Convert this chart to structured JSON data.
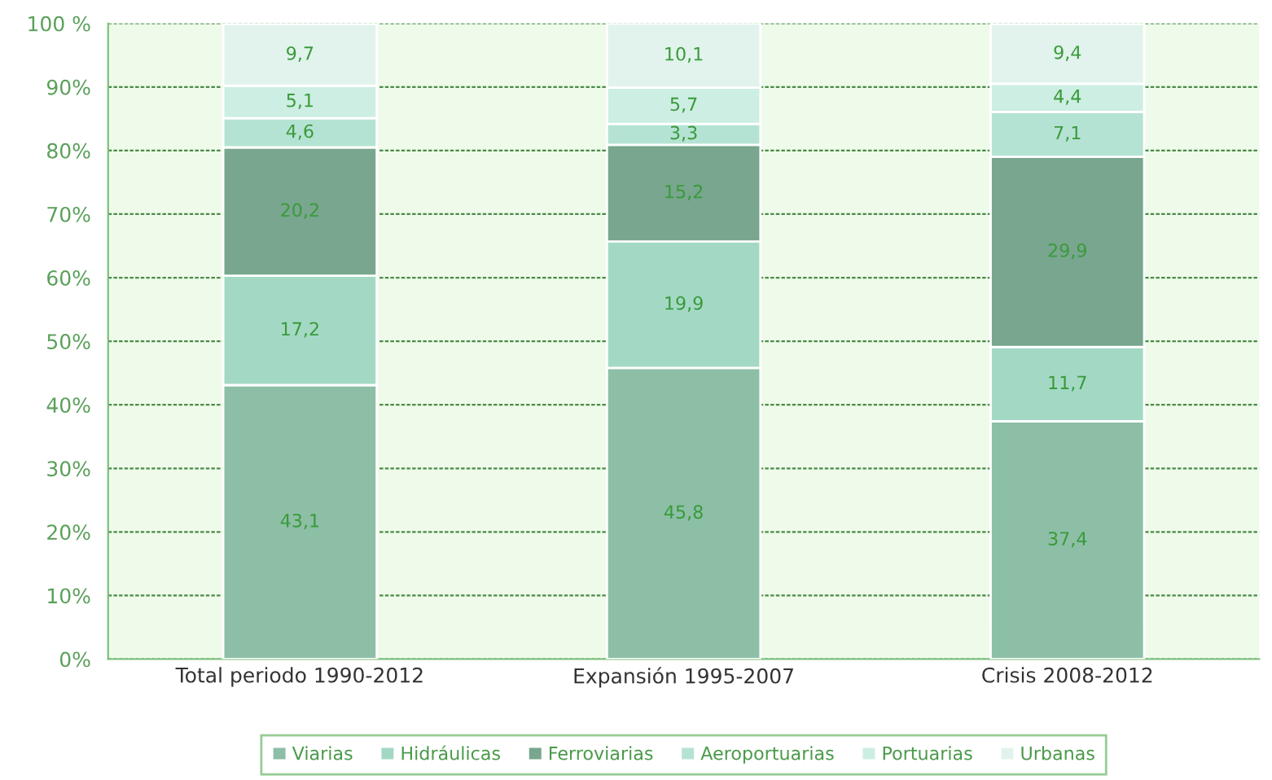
{
  "chart_data": {
    "type": "bar",
    "stacked": true,
    "categories": [
      "Total periodo 1990-2012",
      "Expansión 1995-2007",
      "Crisis 2008-2012"
    ],
    "series": [
      {
        "name": "Viarias",
        "color": "#8cbfa6",
        "values": [
          43.1,
          45.8,
          37.4
        ],
        "value_labels": [
          "43,1",
          "45,8",
          "37,4"
        ]
      },
      {
        "name": "Hidráulicas",
        "color": "#a3d9c4",
        "values": [
          17.2,
          19.9,
          11.7
        ],
        "value_labels": [
          "17,2",
          "19,9",
          "11,7"
        ]
      },
      {
        "name": "Ferroviarias",
        "color": "#78a68e",
        "values": [
          20.2,
          15.2,
          29.9
        ],
        "value_labels": [
          "20,2",
          "15,2",
          "29,9"
        ]
      },
      {
        "name": "Aeroportuarias",
        "color": "#b5e3d3",
        "values": [
          4.6,
          3.3,
          7.1
        ],
        "value_labels": [
          "4,6",
          "3,3",
          "7,1"
        ]
      },
      {
        "name": "Portuarias",
        "color": "#cdeee2",
        "values": [
          5.1,
          5.7,
          4.4
        ],
        "value_labels": [
          "5,1",
          "5,7",
          "4,4"
        ]
      },
      {
        "name": "Urbanas",
        "color": "#e1f3ec",
        "values": [
          9.7,
          10.1,
          9.4
        ],
        "value_labels": [
          "9,7",
          "10,1",
          "9,4"
        ]
      }
    ],
    "ylim": [
      0,
      100
    ],
    "yticks": [
      {
        "value": 0,
        "label": "0%"
      },
      {
        "value": 10,
        "label": "10%"
      },
      {
        "value": 20,
        "label": "20%"
      },
      {
        "value": 30,
        "label": "30%"
      },
      {
        "value": 40,
        "label": "40%"
      },
      {
        "value": 50,
        "label": "50%"
      },
      {
        "value": 60,
        "label": "60%"
      },
      {
        "value": 70,
        "label": "70%"
      },
      {
        "value": 80,
        "label": "80%"
      },
      {
        "value": 90,
        "label": "90%"
      },
      {
        "value": 100,
        "label": "100 %"
      }
    ],
    "grid": "y",
    "legend": "bottom"
  }
}
